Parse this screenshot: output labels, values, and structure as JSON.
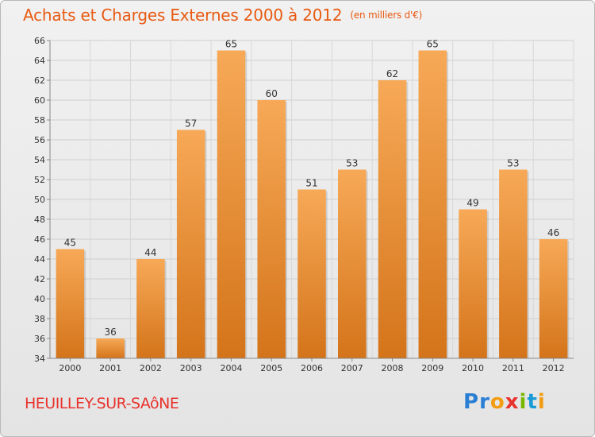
{
  "title": "Achats et Charges Externes 2000 à 2012",
  "subtitle": "(en milliers d'€)",
  "commune": "HEUILLEY-SUR-SAôNE",
  "brand": {
    "letters": [
      "P",
      "r",
      "o",
      "x",
      "i",
      "t",
      "i"
    ],
    "colors": [
      "#2a7fd4",
      "#2a7fd4",
      "#f39c12",
      "#e8322c",
      "#7ab800",
      "#1a9bd7",
      "#f39c12"
    ]
  },
  "colors": {
    "bar_light": "#f7a957",
    "bar_dark": "#d4741a",
    "title": "#e85a12",
    "commune": "#e8322c"
  },
  "chart_data": {
    "type": "bar",
    "title": "Achats et Charges Externes 2000 à 2012",
    "subtitle": "(en milliers d'€)",
    "xlabel": "",
    "ylabel": "",
    "categories": [
      "2000",
      "2001",
      "2002",
      "2003",
      "2004",
      "2005",
      "2006",
      "2007",
      "2008",
      "2009",
      "2010",
      "2011",
      "2012"
    ],
    "values": [
      45,
      36,
      44,
      57,
      65,
      60,
      51,
      53,
      62,
      65,
      49,
      53,
      46
    ],
    "ylim": [
      34,
      66
    ],
    "yticks": [
      34,
      36,
      38,
      40,
      42,
      44,
      46,
      48,
      50,
      52,
      54,
      56,
      58,
      60,
      62,
      64,
      66
    ],
    "grid": true,
    "legend": "none"
  }
}
